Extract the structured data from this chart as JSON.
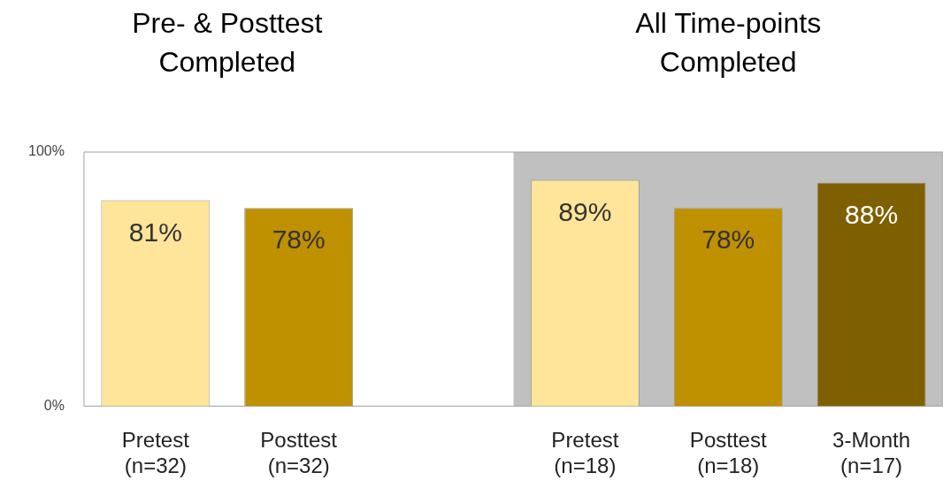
{
  "chart_data": {
    "type": "bar",
    "categories": [
      "Pretest\n(n=32)",
      "Posttest\n(n=32)",
      null,
      "Pretest\n(n=18)",
      "Posttest\n(n=18)",
      "3-Month\n(n=17)"
    ],
    "values": [
      81,
      78,
      null,
      89,
      78,
      88
    ],
    "colors": [
      "#ffe599",
      "#bf9000",
      null,
      "#ffe599",
      "#bf9000",
      "#7f6000"
    ],
    "ylim": [
      0,
      100
    ],
    "yticks": [
      {
        "value": 0,
        "label": "0%"
      },
      {
        "value": 100,
        "label": "100%"
      }
    ],
    "value_labels": [
      "81%",
      "78%",
      null,
      "89%",
      "78%",
      "88%"
    ],
    "bands": [
      {
        "axis": "x",
        "from": "Pretest\n(n=18)",
        "to": "3-Month\n(n=17)",
        "color": "#c0c0c0"
      }
    ],
    "annotations": [
      "Pre- & Posttest Completed",
      "All Time-points Completed"
    ],
    "grid": false,
    "legend": false
  }
}
